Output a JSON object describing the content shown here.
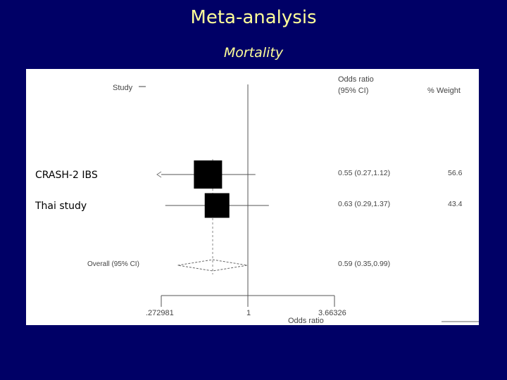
{
  "slide": {
    "title": "Meta-analysis",
    "subtitle": "Mortality"
  },
  "colors": {
    "background": "#000066",
    "title": "#ffff99",
    "panel": "#ffffff",
    "marker": "#000000"
  },
  "chart_data": {
    "type": "forest",
    "column_headers": {
      "study": "Study",
      "odds_ratio_line1": "Odds ratio",
      "odds_ratio_line2": "(95% CI)",
      "weight": "% Weight"
    },
    "studies": [
      {
        "label": "CRASH-2 IBS",
        "or": 0.55,
        "lower": 0.27,
        "upper": 1.12,
        "ci_text": "0.55 (0.27,1.12)",
        "weight": 56.6,
        "weight_text": "56.6"
      },
      {
        "label": "Thai study",
        "or": 0.63,
        "lower": 0.29,
        "upper": 1.37,
        "ci_text": "0.63 (0.29,1.37)",
        "weight": 43.4,
        "weight_text": "43.4"
      }
    ],
    "overall": {
      "label": "Overall  (95% CI)",
      "or": 0.59,
      "lower": 0.35,
      "upper": 0.99,
      "ci_text": "0.59 (0.35,0.99)"
    },
    "x_axis": {
      "scale": "log",
      "min": 0.272981,
      "max": 3.66326,
      "reference": 1,
      "tick_labels": [
        ".272981",
        "1",
        "3.66326"
      ],
      "label": "Odds ratio"
    }
  }
}
